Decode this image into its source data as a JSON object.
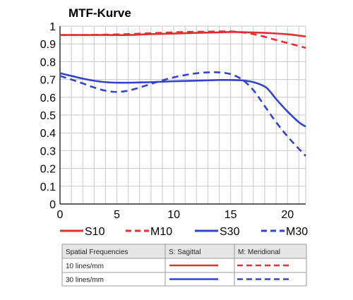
{
  "chart_data": {
    "type": "line",
    "title": "MTF-Kurve",
    "xlabel": "",
    "ylabel": "",
    "xlim": [
      0,
      21.6
    ],
    "ylim": [
      0,
      1
    ],
    "x_ticks": [
      "0",
      "5",
      "10",
      "15",
      "20"
    ],
    "y_ticks": [
      "0",
      "0.1",
      "0.2",
      "0.3",
      "0.4",
      "0.5",
      "0.6",
      "0.7",
      "0.8",
      "0.9",
      "1"
    ],
    "grid": true,
    "legend_position": "bottom",
    "series": [
      {
        "name": "S10",
        "color": "#e03030",
        "dash": "solid",
        "x": [
          0,
          2,
          4,
          6,
          8,
          10,
          12,
          14,
          15,
          16,
          18,
          20,
          21.6
        ],
        "y": [
          0.95,
          0.95,
          0.95,
          0.95,
          0.955,
          0.958,
          0.962,
          0.965,
          0.967,
          0.966,
          0.962,
          0.954,
          0.942
        ]
      },
      {
        "name": "M10",
        "color": "#e03030",
        "dash": "dashed",
        "x": [
          0,
          2,
          4,
          6,
          8,
          10,
          12,
          14,
          15,
          16,
          17,
          18,
          19,
          20,
          21.6
        ],
        "y": [
          0.95,
          0.95,
          0.952,
          0.955,
          0.96,
          0.965,
          0.968,
          0.97,
          0.97,
          0.965,
          0.955,
          0.94,
          0.922,
          0.905,
          0.878
        ]
      },
      {
        "name": "S30",
        "color": "#3344cc",
        "dash": "solid",
        "x": [
          0,
          1,
          2,
          3,
          4,
          5,
          6,
          8,
          10,
          12,
          14,
          15,
          16,
          17,
          18,
          18.5,
          19,
          20,
          21,
          21.6
        ],
        "y": [
          0.735,
          0.72,
          0.705,
          0.693,
          0.685,
          0.682,
          0.682,
          0.685,
          0.69,
          0.693,
          0.697,
          0.697,
          0.695,
          0.685,
          0.66,
          0.63,
          0.59,
          0.52,
          0.46,
          0.435
        ]
      },
      {
        "name": "M30",
        "color": "#3344cc",
        "dash": "dashed",
        "x": [
          0,
          1,
          2,
          3,
          4,
          5,
          6,
          7,
          8,
          9,
          10,
          11,
          12,
          13,
          14,
          15,
          16,
          17,
          18,
          19,
          20,
          21,
          21.6
        ],
        "y": [
          0.72,
          0.7,
          0.678,
          0.655,
          0.637,
          0.63,
          0.637,
          0.655,
          0.675,
          0.695,
          0.712,
          0.725,
          0.735,
          0.74,
          0.74,
          0.73,
          0.7,
          0.64,
          0.55,
          0.46,
          0.38,
          0.31,
          0.27
        ]
      }
    ],
    "legend_table": {
      "headers": [
        "Spatial Frequencies",
        "S: Sagittal",
        "M: Meridional"
      ],
      "rows": [
        {
          "label": "10 lines/mm",
          "color": "#e03030"
        },
        {
          "label": "30 lines/mm",
          "color": "#3344cc"
        }
      ]
    }
  }
}
